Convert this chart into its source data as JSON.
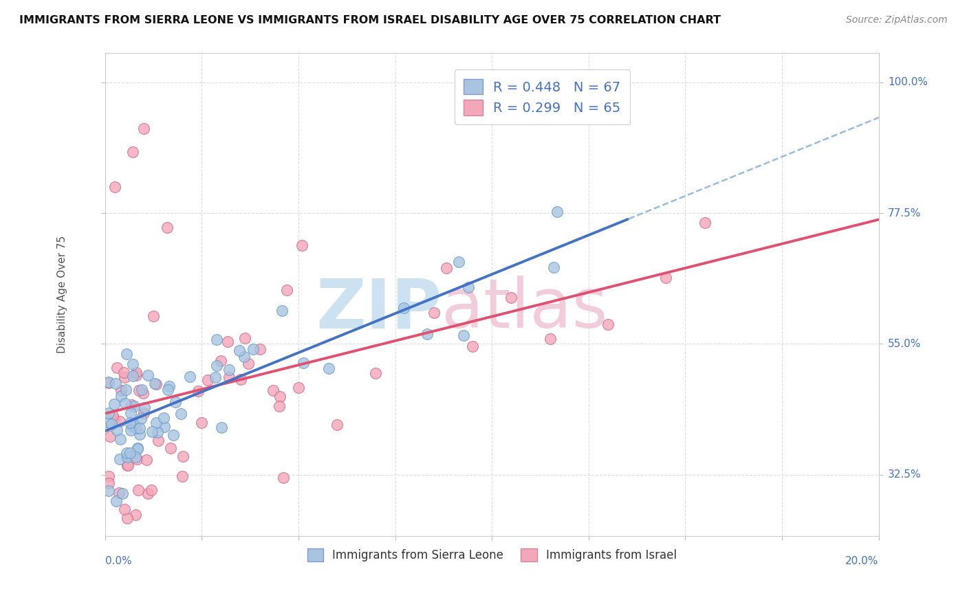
{
  "title": "IMMIGRANTS FROM SIERRA LEONE VS IMMIGRANTS FROM ISRAEL DISABILITY AGE OVER 75 CORRELATION CHART",
  "source": "Source: ZipAtlas.com",
  "ylabel": "Disability Age Over 75",
  "yticks": [
    "32.5%",
    "55.0%",
    "77.5%",
    "100.0%"
  ],
  "ytick_values": [
    0.325,
    0.55,
    0.775,
    1.0
  ],
  "xlim": [
    0.0,
    0.2
  ],
  "ylim": [
    0.22,
    1.05
  ],
  "series1_label": "Immigrants from Sierra Leone",
  "series2_label": "Immigrants from Israel",
  "series1_color": "#a8c4e0",
  "series1_edge": "#6699cc",
  "series2_color": "#f4a7b9",
  "series2_edge": "#cc6688",
  "series1_R": 0.448,
  "series1_N": 67,
  "series2_R": 0.299,
  "series2_N": 65,
  "trendline1_color": "#4472c4",
  "trendline2_color": "#e05070",
  "trendline_dashed_color": "#99bbdd",
  "watermark_zip_color": "#c8dff0",
  "watermark_atlas_color": "#f0c8d8",
  "title_fontsize": 11.5,
  "background_color": "#ffffff",
  "grid_color": "#dddddd",
  "axis_label_color": "#4472c4",
  "ylabel_color": "#555555"
}
